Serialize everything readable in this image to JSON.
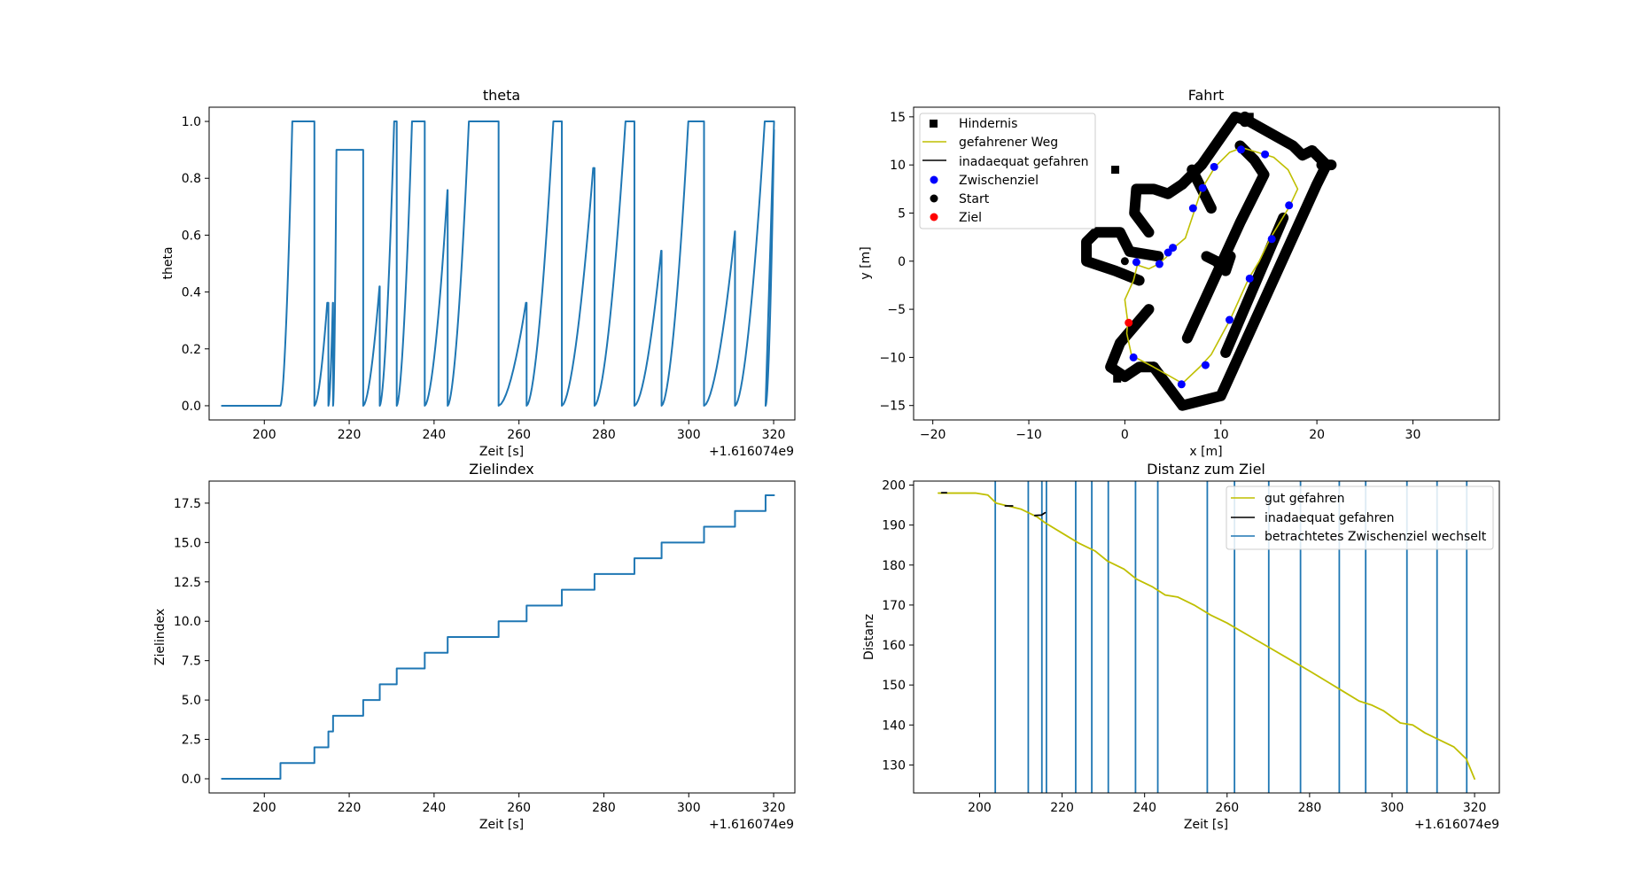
{
  "chart_data": [
    {
      "id": "theta",
      "type": "line",
      "title": "theta",
      "xlabel": "Zeit [s]",
      "ylabel": "theta",
      "offset_text": "+1.616074e9",
      "xlim": [
        187,
        325
      ],
      "ylim": [
        -0.05,
        1.05
      ],
      "xticks": [
        200,
        220,
        240,
        260,
        280,
        300,
        320
      ],
      "yticks": [
        0.0,
        0.2,
        0.4,
        0.6,
        0.8,
        1.0
      ],
      "ytick_labels": [
        "0.0",
        "0.2",
        "0.4",
        "0.6",
        "0.8",
        "1.0"
      ],
      "series": [
        {
          "name": "theta",
          "color": "#1f77b4",
          "x_start": 190,
          "resets": [
            {
              "t": 203.8,
              "rise": 2.8,
              "peak": 1.0
            },
            {
              "t": 211.8,
              "rise": 5.5,
              "peak": 1.0
            },
            {
              "t": 215.1,
              "rise": 1.9,
              "peak": 1.0
            },
            {
              "t": 216.2,
              "rise": 0.8,
              "peak": 0.9
            },
            {
              "t": 223.3,
              "rise": 6.4,
              "peak": 1.0
            },
            {
              "t": 227.2,
              "rise": 3.4,
              "peak": 1.0
            },
            {
              "t": 231.2,
              "rise": 3.6,
              "peak": 1.0
            },
            {
              "t": 237.8,
              "rise": 6.3,
              "peak": 1.0
            },
            {
              "t": 243.2,
              "rise": 5.0,
              "peak": 1.0
            },
            {
              "t": 255.2,
              "rise": 11.7,
              "peak": 1.0
            },
            {
              "t": 261.8,
              "rise": 6.3,
              "peak": 1.0
            },
            {
              "t": 270.1,
              "rise": 8.2,
              "peak": 1.0
            },
            {
              "t": 277.8,
              "rise": 7.3,
              "peak": 1.0
            },
            {
              "t": 287.2,
              "rise": 9.0,
              "peak": 1.0
            },
            {
              "t": 293.6,
              "rise": 6.3,
              "peak": 1.0
            },
            {
              "t": 303.6,
              "rise": 9.7,
              "peak": 1.0
            },
            {
              "t": 310.9,
              "rise": 7.0,
              "peak": 1.0
            }
          ],
          "tail": {
            "t_end": 320.1,
            "value": 0.97
          }
        }
      ]
    },
    {
      "id": "fahrt",
      "type": "scatter",
      "title": "Fahrt",
      "xlabel": "x [m]",
      "ylabel": "y [m]",
      "xlim": [
        -22,
        39
      ],
      "ylim": [
        -16.5,
        16
      ],
      "xticks": [
        -20,
        -10,
        0,
        10,
        20,
        30
      ],
      "xtick_labels": [
        "−20",
        "−10",
        "0",
        "10",
        "20",
        "30"
      ],
      "yticks": [
        -15,
        -10,
        -5,
        0,
        5,
        10,
        15
      ],
      "ytick_labels": [
        "−15",
        "−10",
        "−5",
        "0",
        "5",
        "10",
        "15"
      ],
      "legend": {
        "position": "top-left",
        "entries": [
          {
            "label": "Hindernis",
            "marker": "square",
            "color": "#000000"
          },
          {
            "label": "gefahrener Weg",
            "marker": "line",
            "color": "#bfbf00"
          },
          {
            "label": "inadaequat gefahren",
            "marker": "line",
            "color": "#000000"
          },
          {
            "label": "Zwischenziel",
            "marker": "dot",
            "color": "#0000ff"
          },
          {
            "label": "Start",
            "marker": "dot",
            "color": "#000000"
          },
          {
            "label": "Ziel",
            "marker": "dot",
            "color": "#ff0000"
          }
        ]
      },
      "obstacle_polylines": [
        [
          [
            3,
            -11
          ],
          [
            6,
            -15
          ],
          [
            10,
            -14
          ],
          [
            20,
            8
          ],
          [
            21,
            10
          ],
          [
            19.5,
            11.5
          ],
          [
            18.5,
            11
          ],
          [
            17.5,
            12
          ],
          [
            13,
            14.5
          ],
          [
            11.5,
            15
          ],
          [
            8,
            10
          ],
          [
            6,
            8
          ]
        ],
        [
          [
            6,
            8
          ],
          [
            4.5,
            7
          ],
          [
            3,
            7.5
          ],
          [
            1.2,
            7.5
          ],
          [
            1,
            5
          ],
          [
            2.5,
            3
          ]
        ],
        [
          [
            3.5,
            0.5
          ],
          [
            0.5,
            1
          ],
          [
            -0.5,
            3
          ],
          [
            -3,
            3
          ],
          [
            -4,
            2
          ],
          [
            -4,
            0
          ],
          [
            -1,
            -1
          ],
          [
            1.5,
            -2
          ]
        ],
        [
          [
            2.5,
            -5
          ],
          [
            -0.5,
            -8.5
          ],
          [
            -1.5,
            -11
          ],
          [
            0,
            -12
          ],
          [
            1.5,
            -11
          ],
          [
            3,
            -11
          ]
        ],
        [
          [
            6.5,
            -8
          ],
          [
            12,
            4
          ],
          [
            14.5,
            9
          ],
          [
            13.5,
            10.5
          ],
          [
            12,
            12
          ]
        ],
        [
          [
            10.5,
            -9.5
          ],
          [
            16.5,
            4.5
          ]
        ],
        [
          [
            8.5,
            0.5
          ],
          [
            9.5,
            0
          ],
          [
            10.5,
            -1
          ],
          [
            11,
            0.5
          ]
        ],
        [
          [
            9,
            5.5
          ],
          [
            7,
            9.5
          ]
        ],
        [
          [
            12.5,
            14.5
          ],
          [
            12.5,
            15
          ]
        ],
        [
          [
            20.5,
            10
          ],
          [
            21.5,
            10
          ]
        ]
      ],
      "obstacle_points": [
        [
          -1,
          9.5
        ],
        [
          -0.8,
          -12.2
        ],
        [
          6,
          -15
        ],
        [
          19.5,
          11.5
        ],
        [
          13,
          15
        ]
      ],
      "path": [
        [
          0.3,
          -6.3
        ],
        [
          0.2,
          -7.5
        ],
        [
          0.7,
          -9.8
        ],
        [
          3,
          -11
        ],
        [
          6,
          -12.7
        ],
        [
          7.8,
          -11
        ],
        [
          9,
          -9.7
        ],
        [
          11,
          -6
        ],
        [
          12.9,
          -1.8
        ],
        [
          14,
          0
        ],
        [
          15.1,
          2.3
        ],
        [
          17.1,
          5.6
        ],
        [
          18,
          7.5
        ],
        [
          17,
          9.5
        ],
        [
          15.5,
          10.8
        ],
        [
          12.2,
          11.8
        ],
        [
          10.9,
          11.3
        ],
        [
          9.4,
          9.8
        ],
        [
          8,
          7.5
        ],
        [
          7.3,
          5.4
        ],
        [
          6.3,
          2.4
        ],
        [
          5,
          1.3
        ],
        [
          4.3,
          0.4
        ],
        [
          3.5,
          -0.3
        ],
        [
          2.5,
          -0.8
        ],
        [
          1.3,
          -0.4
        ],
        [
          0.9,
          -2
        ],
        [
          0,
          -4
        ],
        [
          0.3,
          -6.3
        ]
      ],
      "zwischenziele": [
        [
          1.2,
          -0.1
        ],
        [
          3.6,
          -0.3
        ],
        [
          4.5,
          0.9
        ],
        [
          5,
          1.4
        ],
        [
          7.1,
          5.5
        ],
        [
          8.1,
          7.6
        ],
        [
          9.3,
          9.8
        ],
        [
          12.1,
          11.6
        ],
        [
          14.6,
          11.1
        ],
        [
          17.1,
          5.8
        ],
        [
          15.3,
          2.3
        ],
        [
          13,
          -1.8
        ],
        [
          10.9,
          -6.1
        ],
        [
          8.4,
          -10.8
        ],
        [
          5.9,
          -12.8
        ],
        [
          0.9,
          -10
        ]
      ],
      "start": [
        0,
        0
      ],
      "ziel": [
        0.4,
        -6.4
      ]
    },
    {
      "id": "zielindex",
      "type": "line",
      "title": "Zielindex",
      "xlabel": "Zeit [s]",
      "ylabel": "Zielindex",
      "offset_text": "+1.616074e9",
      "xlim": [
        187,
        325
      ],
      "ylim": [
        -0.9,
        18.9
      ],
      "xticks": [
        200,
        220,
        240,
        260,
        280,
        300,
        320
      ],
      "yticks": [
        0.0,
        2.5,
        5.0,
        7.5,
        10.0,
        12.5,
        15.0,
        17.5
      ],
      "ytick_labels": [
        "0.0",
        "2.5",
        "5.0",
        "7.5",
        "10.0",
        "12.5",
        "15.0",
        "17.5"
      ],
      "series": [
        {
          "name": "Zielindex",
          "color": "#1f77b4",
          "step_times": [
            190,
            203.8,
            211.8,
            215.1,
            216.2,
            223.3,
            227.2,
            231.2,
            237.8,
            243.2,
            255.2,
            261.8,
            270.1,
            277.8,
            287.2,
            293.6,
            303.6,
            310.9,
            318.1
          ],
          "step_values": [
            0,
            1,
            2,
            3,
            4,
            5,
            6,
            7,
            8,
            9,
            10,
            11,
            12,
            13,
            14,
            15,
            16,
            17,
            18
          ],
          "x_end": 320.1
        }
      ]
    },
    {
      "id": "distanz",
      "type": "line",
      "title": "Distanz zum Ziel",
      "xlabel": "Zeit [s]",
      "ylabel": "Distanz",
      "offset_text": "+1.616074e9",
      "xlim": [
        184,
        326
      ],
      "ylim": [
        123,
        201
      ],
      "xticks": [
        200,
        220,
        240,
        260,
        280,
        300,
        320
      ],
      "yticks": [
        130,
        140,
        150,
        160,
        170,
        180,
        190,
        200
      ],
      "legend": {
        "position": "top-right",
        "entries": [
          {
            "label": "gut gefahren",
            "marker": "line",
            "color": "#bfbf00"
          },
          {
            "label": "inadaequat gefahren",
            "marker": "line",
            "color": "#000000"
          },
          {
            "label": "betrachtetes Zwischenziel wechselt",
            "marker": "line",
            "color": "#1f77b4"
          }
        ]
      },
      "series": [
        {
          "name": "gut gefahren",
          "color": "#bfbf00",
          "x": [
            190,
            192,
            195,
            199,
            202,
            204,
            206,
            208,
            210,
            212,
            214,
            216,
            220,
            224,
            228,
            231,
            235,
            238,
            242,
            245,
            248,
            252,
            256,
            260,
            265,
            270,
            275,
            280,
            284,
            288,
            292,
            295,
            298,
            302,
            305,
            308,
            312,
            315,
            318,
            320
          ],
          "y": [
            198,
            198,
            198,
            198,
            197.5,
            195.5,
            195,
            194.5,
            194,
            193,
            192,
            190.5,
            188,
            185.5,
            183.5,
            181,
            179,
            176.5,
            174.5,
            172.5,
            172,
            170,
            167.5,
            165.5,
            162.5,
            159.5,
            156.5,
            153.5,
            151,
            148.5,
            146,
            145,
            143.5,
            140.5,
            140,
            138,
            136,
            134.5,
            131.5,
            126.5
          ]
        },
        {
          "name": "inadaequat gefahren",
          "color": "#000000",
          "segments": [
            [
              [
                190.8,
                198.1
              ],
              [
                192,
                198.1
              ]
            ],
            [
              [
                206.2,
                194.8
              ],
              [
                208,
                194.8
              ]
            ],
            [
              [
                213.4,
                192.4
              ],
              [
                215,
                192.5
              ],
              [
                215.9,
                193.1
              ]
            ]
          ]
        }
      ],
      "vlines": [
        203.8,
        211.8,
        215.1,
        216.2,
        223.3,
        227.2,
        231.2,
        237.8,
        243.2,
        255.2,
        261.8,
        270.1,
        277.8,
        287.2,
        293.6,
        303.6,
        310.9,
        318.1
      ],
      "vline_color": "#1f77b4"
    }
  ]
}
